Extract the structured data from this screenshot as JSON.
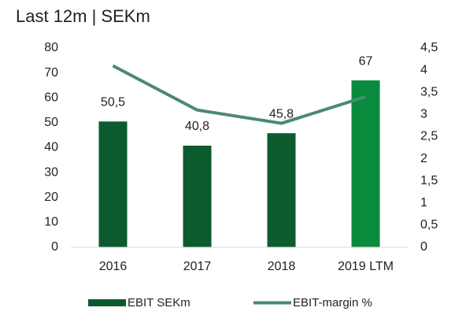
{
  "chart_data": {
    "type": "bar",
    "title": "Last 12m | SEKm",
    "categories": [
      "2016",
      "2017",
      "2018",
      "2019 LTM"
    ],
    "series": [
      {
        "name": "EBIT SEKm",
        "type": "bar",
        "colors": [
          "#0b5b2e",
          "#0b5b2e",
          "#0b5b2e",
          "#0a8a3c"
        ],
        "values": [
          50.5,
          40.8,
          45.8,
          67
        ],
        "value_labels": [
          "50,5",
          "40,8",
          "45,8",
          "67"
        ]
      },
      {
        "name": "EBIT-margin %",
        "type": "line",
        "axis": "y2",
        "color": "#4b8a6f",
        "values": [
          4.1,
          3.1,
          2.8,
          3.4
        ]
      }
    ],
    "ylim": [
      0,
      80
    ],
    "yticks": [
      0,
      10,
      20,
      30,
      40,
      50,
      60,
      70,
      80
    ],
    "y2lim": [
      0,
      4.5
    ],
    "y2ticks": [
      0,
      {
        "value": 0.5,
        "label": "0,5"
      },
      1,
      {
        "value": 1.5,
        "label": "1,5"
      },
      2,
      {
        "value": 2.5,
        "label": "2,5"
      },
      3,
      {
        "value": 3.5,
        "label": "3,5"
      },
      4,
      {
        "value": 4.5,
        "label": "4,5"
      }
    ],
    "legend": "bottom"
  }
}
